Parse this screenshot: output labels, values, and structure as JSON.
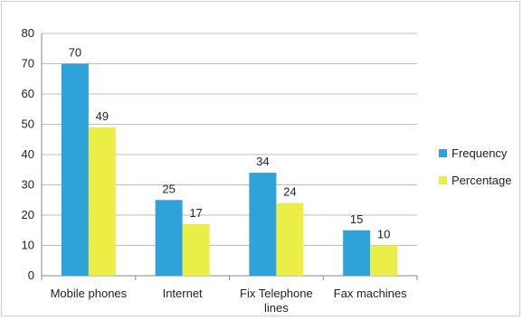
{
  "chart_data": {
    "type": "bar",
    "categories": [
      "Mobile phones",
      "Internet",
      "Fix Telephone lines",
      "Fax machines"
    ],
    "category_lines": [
      [
        "Mobile phones"
      ],
      [
        "Internet"
      ],
      [
        "Fix Telephone",
        "lines"
      ],
      [
        "Fax machines"
      ]
    ],
    "series": [
      {
        "name": "Frequency",
        "values": [
          70,
          25,
          34,
          15
        ],
        "color": "#2ea3d9"
      },
      {
        "name": "Percentage",
        "values": [
          49,
          17,
          24,
          10
        ],
        "color": "#ecee48"
      }
    ],
    "ylim": [
      0,
      80
    ],
    "yticks": [
      0,
      10,
      20,
      30,
      40,
      50,
      60,
      70,
      80
    ],
    "grid": true,
    "legend_position": "right",
    "xlabel": "",
    "ylabel": "",
    "title": ""
  }
}
